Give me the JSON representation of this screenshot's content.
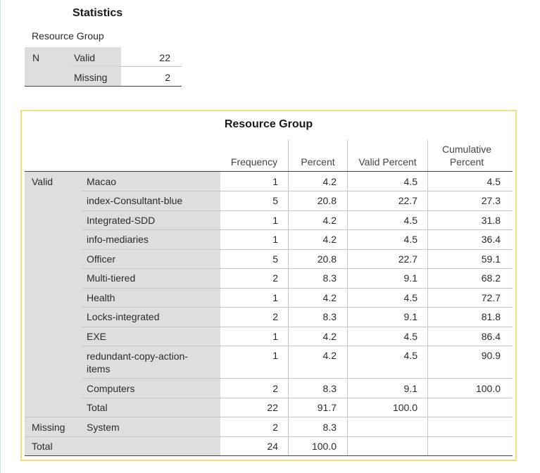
{
  "statistics": {
    "title": "Statistics",
    "variable": "Resource Group",
    "n_label": "N",
    "valid_label": "Valid",
    "valid_value": "22",
    "missing_label": "Missing",
    "missing_value": "2"
  },
  "frequency_table": {
    "title": "Resource Group",
    "columns": {
      "frequency": "Frequency",
      "percent": "Percent",
      "valid_percent": "Valid Percent",
      "cumulative_line1": "Cumulative",
      "cumulative_line2": "Percent"
    },
    "groups": {
      "valid": "Valid",
      "missing": "Missing",
      "total": "Total"
    },
    "rows": [
      {
        "label": "Macao",
        "frequency": "1",
        "percent": "4.2",
        "valid_percent": "4.5",
        "cumulative": "4.5"
      },
      {
        "label": "index-Consultant-blue",
        "frequency": "5",
        "percent": "20.8",
        "valid_percent": "22.7",
        "cumulative": "27.3"
      },
      {
        "label": "Integrated-SDD",
        "frequency": "1",
        "percent": "4.2",
        "valid_percent": "4.5",
        "cumulative": "31.8"
      },
      {
        "label": "info-mediaries",
        "frequency": "1",
        "percent": "4.2",
        "valid_percent": "4.5",
        "cumulative": "36.4"
      },
      {
        "label": "Officer",
        "frequency": "5",
        "percent": "20.8",
        "valid_percent": "22.7",
        "cumulative": "59.1"
      },
      {
        "label": "Multi-tiered",
        "frequency": "2",
        "percent": "8.3",
        "valid_percent": "9.1",
        "cumulative": "68.2"
      },
      {
        "label": "Health",
        "frequency": "1",
        "percent": "4.2",
        "valid_percent": "4.5",
        "cumulative": "72.7"
      },
      {
        "label": "Locks-integrated",
        "frequency": "2",
        "percent": "8.3",
        "valid_percent": "9.1",
        "cumulative": "81.8"
      },
      {
        "label": "EXE",
        "frequency": "1",
        "percent": "4.2",
        "valid_percent": "4.5",
        "cumulative": "86.4"
      },
      {
        "label": "redundant-copy-action-items",
        "frequency": "1",
        "percent": "4.2",
        "valid_percent": "4.5",
        "cumulative": "90.9"
      },
      {
        "label": "Computers",
        "frequency": "2",
        "percent": "8.3",
        "valid_percent": "9.1",
        "cumulative": "100.0"
      }
    ],
    "valid_total": {
      "label": "Total",
      "frequency": "22",
      "percent": "91.7",
      "valid_percent": "100.0"
    },
    "missing_row": {
      "label": "System",
      "frequency": "2",
      "percent": "8.3"
    },
    "grand_total": {
      "frequency": "24",
      "percent": "100.0"
    }
  }
}
